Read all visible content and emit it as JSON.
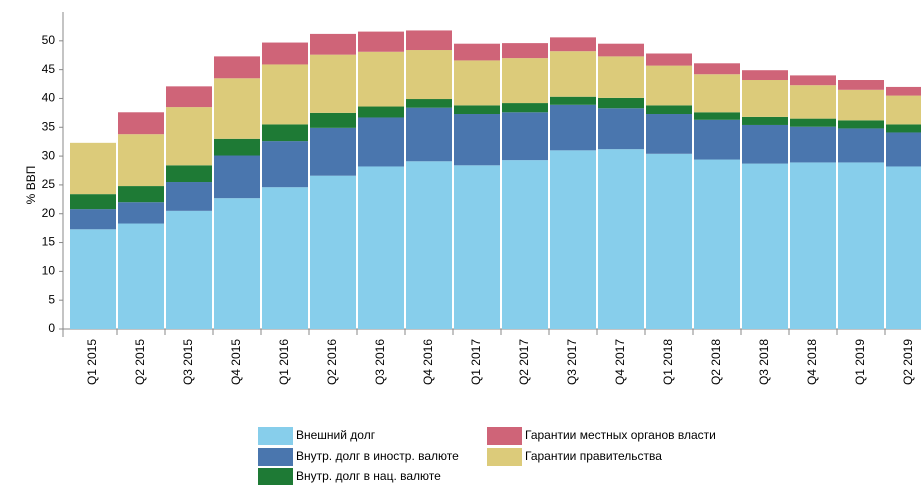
{
  "chart_data": {
    "type": "stacked_bar",
    "y_label": "% ВВП",
    "categories": [
      "Q1 2015",
      "Q2 2015",
      "Q3 2015",
      "Q4 2015",
      "Q1 2016",
      "Q2 2016",
      "Q3 2016",
      "Q4 2016",
      "Q1 2017",
      "Q2 2017",
      "Q3 2017",
      "Q4 2017",
      "Q1 2018",
      "Q2 2018",
      "Q3 2018",
      "Q4 2018",
      "Q1 2019",
      "Q2 2019"
    ],
    "series": [
      {
        "name": "Внешний долг",
        "color": "#87ceeb",
        "values": [
          17.3,
          18.3,
          20.5,
          22.7,
          24.6,
          26.6,
          28.2,
          29.1,
          28.4,
          29.3,
          31.0,
          31.2,
          30.4,
          29.4,
          28.7,
          28.9,
          28.9,
          28.2
        ]
      },
      {
        "name": "Внутр. долг в иностр. валюте",
        "color": "#4a76ae",
        "values": [
          3.5,
          3.7,
          5.0,
          7.4,
          8.0,
          8.3,
          8.5,
          9.3,
          8.9,
          8.3,
          7.9,
          7.1,
          6.9,
          6.9,
          6.7,
          6.2,
          5.9,
          5.9
        ]
      },
      {
        "name": "Внутр. долг в нац. валюте",
        "color": "#1e7a35",
        "values": [
          2.6,
          2.8,
          2.9,
          2.9,
          2.9,
          2.6,
          1.9,
          1.5,
          1.5,
          1.6,
          1.4,
          1.8,
          1.5,
          1.3,
          1.4,
          1.4,
          1.4,
          1.4
        ]
      },
      {
        "name": "Гарантии правительства",
        "color": "#dccb7a",
        "values": [
          8.9,
          9.0,
          10.1,
          10.5,
          10.4,
          10.1,
          9.5,
          8.5,
          7.8,
          7.8,
          7.9,
          7.2,
          6.9,
          6.6,
          6.4,
          5.8,
          5.3,
          5.0
        ]
      },
      {
        "name": "Гарантии местных органов власти",
        "color": "#cf6478",
        "values": [
          0,
          3.8,
          3.6,
          3.8,
          3.8,
          3.6,
          3.5,
          3.4,
          2.9,
          2.6,
          2.4,
          2.2,
          2.1,
          1.9,
          1.7,
          1.7,
          1.7,
          1.5
        ]
      }
    ],
    "ylim": [
      0,
      55
    ],
    "yticks": [
      0,
      5,
      10,
      15,
      20,
      25,
      30,
      35,
      40,
      45,
      50
    ]
  }
}
